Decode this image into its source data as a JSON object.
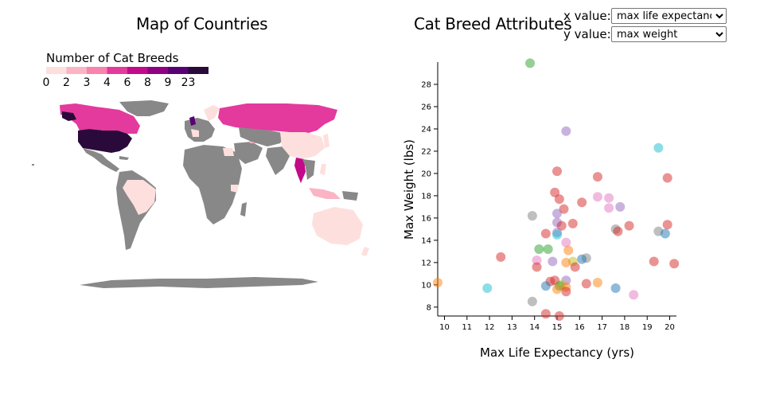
{
  "map": {
    "title": "Map of Countries",
    "legend_title": "Number of Cat Breeds",
    "legend": [
      {
        "label": "0",
        "color": "#fde0dd"
      },
      {
        "label": "2",
        "color": "#fbb4c4"
      },
      {
        "label": "3",
        "color": "#f883ac"
      },
      {
        "label": "4",
        "color": "#e4399d"
      },
      {
        "label": "6",
        "color": "#c20a8a"
      },
      {
        "label": "8",
        "color": "#8f0182"
      },
      {
        "label": "9",
        "color": "#590074"
      },
      {
        "label": "23",
        "color": "#2a0a3a"
      }
    ],
    "no_data_color": "#888888"
  },
  "scatter": {
    "title": "Cat Breed Attributes",
    "controls": {
      "x_label": "x value:",
      "x_selected": "max life expectancy",
      "y_label": "y value:",
      "y_selected": "max weight"
    }
  },
  "chart_data": {
    "type": "scatter",
    "title": "Cat Breed Attributes",
    "xlabel": "Max Life Expectancy (yrs)",
    "ylabel": "Max Weight (lbs)",
    "xlim": [
      9.7,
      20.3
    ],
    "ylim": [
      7.2,
      30
    ],
    "xticks": [
      10,
      11,
      12,
      13,
      14,
      15,
      16,
      17,
      18,
      19,
      20
    ],
    "yticks": [
      8,
      10,
      12,
      14,
      16,
      18,
      20,
      22,
      24,
      26,
      28
    ],
    "grid": false,
    "points": [
      {
        "x": 13.8,
        "y": 29.9,
        "c": "#2ca02c"
      },
      {
        "x": 15.4,
        "y": 23.8,
        "c": "#9467bd"
      },
      {
        "x": 19.5,
        "y": 22.3,
        "c": "#17becf"
      },
      {
        "x": 15.0,
        "y": 20.2,
        "c": "#d62728"
      },
      {
        "x": 16.8,
        "y": 19.7,
        "c": "#d62728"
      },
      {
        "x": 19.9,
        "y": 19.6,
        "c": "#d62728"
      },
      {
        "x": 14.9,
        "y": 18.3,
        "c": "#d62728"
      },
      {
        "x": 16.8,
        "y": 17.9,
        "c": "#e377c2"
      },
      {
        "x": 17.3,
        "y": 17.8,
        "c": "#e377c2"
      },
      {
        "x": 15.1,
        "y": 17.7,
        "c": "#d62728"
      },
      {
        "x": 16.1,
        "y": 17.4,
        "c": "#d62728"
      },
      {
        "x": 17.8,
        "y": 17.0,
        "c": "#9467bd"
      },
      {
        "x": 17.3,
        "y": 16.9,
        "c": "#e377c2"
      },
      {
        "x": 15.3,
        "y": 16.8,
        "c": "#d62728"
      },
      {
        "x": 15.0,
        "y": 16.4,
        "c": "#9467bd"
      },
      {
        "x": 13.9,
        "y": 16.2,
        "c": "#7f7f7f"
      },
      {
        "x": 15.0,
        "y": 15.6,
        "c": "#9467bd"
      },
      {
        "x": 15.7,
        "y": 15.5,
        "c": "#d62728"
      },
      {
        "x": 19.9,
        "y": 15.4,
        "c": "#d62728"
      },
      {
        "x": 15.2,
        "y": 15.3,
        "c": "#d62728"
      },
      {
        "x": 18.2,
        "y": 15.3,
        "c": "#d62728"
      },
      {
        "x": 17.6,
        "y": 15.0,
        "c": "#7f7f7f"
      },
      {
        "x": 17.7,
        "y": 14.8,
        "c": "#d62728"
      },
      {
        "x": 19.5,
        "y": 14.8,
        "c": "#7f7f7f"
      },
      {
        "x": 15.0,
        "y": 14.7,
        "c": "#9467bd"
      },
      {
        "x": 19.8,
        "y": 14.6,
        "c": "#1f77b4"
      },
      {
        "x": 14.5,
        "y": 14.6,
        "c": "#d62728"
      },
      {
        "x": 15.0,
        "y": 14.5,
        "c": "#17becf"
      },
      {
        "x": 15.4,
        "y": 13.8,
        "c": "#e377c2"
      },
      {
        "x": 14.2,
        "y": 13.2,
        "c": "#2ca02c"
      },
      {
        "x": 14.6,
        "y": 13.2,
        "c": "#2ca02c"
      },
      {
        "x": 15.5,
        "y": 13.1,
        "c": "#ff7f0e"
      },
      {
        "x": 12.5,
        "y": 12.5,
        "c": "#d62728"
      },
      {
        "x": 16.3,
        "y": 12.4,
        "c": "#7f7f7f"
      },
      {
        "x": 16.1,
        "y": 12.3,
        "c": "#1f77b4"
      },
      {
        "x": 14.1,
        "y": 12.2,
        "c": "#e377c2"
      },
      {
        "x": 14.8,
        "y": 12.1,
        "c": "#9467bd"
      },
      {
        "x": 15.7,
        "y": 12.1,
        "c": "#bcbd22"
      },
      {
        "x": 15.4,
        "y": 12.0,
        "c": "#ff7f0e"
      },
      {
        "x": 19.3,
        "y": 12.1,
        "c": "#d62728"
      },
      {
        "x": 20.2,
        "y": 11.9,
        "c": "#d62728"
      },
      {
        "x": 15.8,
        "y": 11.6,
        "c": "#d62728"
      },
      {
        "x": 14.1,
        "y": 11.6,
        "c": "#d62728"
      },
      {
        "x": 15.4,
        "y": 10.4,
        "c": "#9467bd"
      },
      {
        "x": 14.7,
        "y": 10.3,
        "c": "#d62728"
      },
      {
        "x": 14.9,
        "y": 10.4,
        "c": "#d62728"
      },
      {
        "x": 16.8,
        "y": 10.2,
        "c": "#ff7f0e"
      },
      {
        "x": 16.3,
        "y": 10.1,
        "c": "#d62728"
      },
      {
        "x": 15.2,
        "y": 10.0,
        "c": "#bcbd22"
      },
      {
        "x": 15.1,
        "y": 9.9,
        "c": "#2ca02c"
      },
      {
        "x": 14.5,
        "y": 9.9,
        "c": "#1f77b4"
      },
      {
        "x": 15.4,
        "y": 9.8,
        "c": "#ff7f0e"
      },
      {
        "x": 9.7,
        "y": 10.2,
        "c": "#ff7f0e"
      },
      {
        "x": 11.9,
        "y": 9.7,
        "c": "#17becf"
      },
      {
        "x": 17.6,
        "y": 9.7,
        "c": "#1f77b4"
      },
      {
        "x": 15.0,
        "y": 9.6,
        "c": "#ff7f0e"
      },
      {
        "x": 15.4,
        "y": 9.4,
        "c": "#d62728"
      },
      {
        "x": 18.4,
        "y": 9.1,
        "c": "#e377c2"
      },
      {
        "x": 13.9,
        "y": 8.5,
        "c": "#7f7f7f"
      },
      {
        "x": 14.5,
        "y": 7.4,
        "c": "#d62728"
      },
      {
        "x": 15.1,
        "y": 7.2,
        "c": "#d62728"
      }
    ]
  }
}
